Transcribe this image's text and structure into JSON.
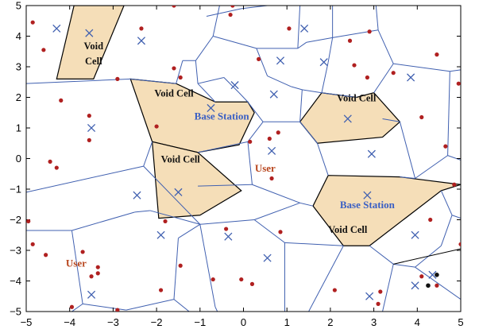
{
  "chart_data": {
    "type": "voronoi",
    "title": "",
    "xlabel": "",
    "ylabel": "",
    "xlim": [
      -5,
      5
    ],
    "ylim": [
      -5,
      5
    ],
    "x_ticks": [
      "−5",
      "−4",
      "−3",
      "−2",
      "−1",
      "0",
      "1",
      "2",
      "3",
      "4",
      "5"
    ],
    "y_ticks": [
      "5",
      "4",
      "3",
      "2",
      "1",
      "0",
      "−1",
      "−2",
      "−3",
      "−4",
      "−5"
    ],
    "grid": false,
    "colors": {
      "edge": "#4060b0",
      "void_fill": "#f5deb8",
      "void_edge": "#000000",
      "base_station": "#4060b0",
      "user": "#b02020",
      "station_label": "#3a5fc4",
      "user_label": "#b8461e"
    },
    "base_stations": [
      [
        -4.3,
        4.25
      ],
      [
        -3.55,
        4.1
      ],
      [
        -2.35,
        3.85
      ],
      [
        -3.5,
        1.0
      ],
      [
        -0.2,
        2.4
      ],
      [
        -0.75,
        1.65
      ],
      [
        0.7,
        2.1
      ],
      [
        0.85,
        3.2
      ],
      [
        1.4,
        4.25
      ],
      [
        1.85,
        3.15
      ],
      [
        2.4,
        1.3
      ],
      [
        3.85,
        2.65
      ],
      [
        2.95,
        0.15
      ],
      [
        0.65,
        0.25
      ],
      [
        -2.45,
        -1.2
      ],
      [
        -1.5,
        -1.1
      ],
      [
        -1.9,
        -2.5
      ],
      [
        -0.35,
        -2.55
      ],
      [
        0.55,
        -3.25
      ],
      [
        2.85,
        -1.2
      ],
      [
        3.95,
        -2.5
      ],
      [
        2.9,
        -4.5
      ],
      [
        3.95,
        -4.15
      ],
      [
        -3.5,
        -4.45
      ],
      [
        4.35,
        -3.8
      ]
    ],
    "users": [
      [
        -4.6,
        3.55
      ],
      [
        -4.85,
        4.45
      ],
      [
        -2.35,
        4.25
      ],
      [
        -1.6,
        5.0
      ],
      [
        -0.25,
        5.0
      ],
      [
        -0.3,
        4.7
      ],
      [
        -2.9,
        2.6
      ],
      [
        -4.2,
        1.9
      ],
      [
        -3.55,
        1.4
      ],
      [
        -1.6,
        2.95
      ],
      [
        -1.45,
        2.65
      ],
      [
        0.35,
        3.25
      ],
      [
        1.05,
        4.25
      ],
      [
        2.45,
        3.85
      ],
      [
        2.55,
        3.05
      ],
      [
        2.9,
        4.15
      ],
      [
        3.45,
        2.8
      ],
      [
        4.45,
        3.4
      ],
      [
        4.95,
        2.45
      ],
      [
        2.85,
        2.65
      ],
      [
        -4.45,
        -0.1
      ],
      [
        -4.3,
        -0.3
      ],
      [
        -3.55,
        0.6
      ],
      [
        0.15,
        0.55
      ],
      [
        0.6,
        0.65
      ],
      [
        0.65,
        -0.65
      ],
      [
        0.8,
        0.85
      ],
      [
        -2.0,
        1.05
      ],
      [
        4.1,
        1.35
      ],
      [
        4.65,
        0.4
      ],
      [
        4.85,
        -0.85
      ],
      [
        -4.95,
        -2.05
      ],
      [
        -4.85,
        -2.8
      ],
      [
        -4.55,
        -3.15
      ],
      [
        -3.7,
        -3.05
      ],
      [
        -3.35,
        -3.55
      ],
      [
        -3.5,
        -3.85
      ],
      [
        -3.35,
        -3.75
      ],
      [
        -1.9,
        -4.3
      ],
      [
        -1.8,
        -2.05
      ],
      [
        -1.45,
        -3.5
      ],
      [
        -0.7,
        -3.95
      ],
      [
        -0.05,
        -3.95
      ],
      [
        -0.4,
        -2.3
      ],
      [
        0.85,
        -2.4
      ],
      [
        0.2,
        -4.1
      ],
      [
        2.1,
        -4.3
      ],
      [
        3.1,
        -4.75
      ],
      [
        3.15,
        -4.35
      ],
      [
        4.3,
        -2.0
      ],
      [
        5.0,
        -2.8
      ],
      [
        4.1,
        -3.85
      ],
      [
        4.45,
        -4.15
      ],
      [
        -2.9,
        -4.95
      ],
      [
        -3.95,
        -4.85
      ]
    ],
    "cell_edges": [
      [
        [
          -5.0,
          2.45
        ],
        [
          -2.6,
          2.6
        ]
      ],
      [
        [
          -2.6,
          2.6
        ],
        [
          -1.55,
          2.45
        ]
      ],
      [
        [
          -1.55,
          2.45
        ],
        [
          -1.4,
          3.2
        ]
      ],
      [
        [
          -1.4,
          3.2
        ],
        [
          -1.1,
          3.2
        ]
      ],
      [
        [
          -1.1,
          3.2
        ],
        [
          -0.7,
          4.0
        ]
      ],
      [
        [
          -0.7,
          4.0
        ],
        [
          -0.55,
          5.0
        ]
      ],
      [
        [
          -0.7,
          4.0
        ],
        [
          0.3,
          3.6
        ]
      ],
      [
        [
          0.3,
          3.6
        ],
        [
          1.25,
          3.6
        ]
      ],
      [
        [
          1.25,
          3.6
        ],
        [
          1.3,
          5.0
        ]
      ],
      [
        [
          -0.85,
          4.65
        ],
        [
          -0.05,
          4.9
        ]
      ],
      [
        [
          -0.05,
          4.9
        ],
        [
          0.55,
          5.0
        ]
      ],
      [
        [
          1.25,
          3.6
        ],
        [
          1.45,
          3.8
        ]
      ],
      [
        [
          1.45,
          3.8
        ],
        [
          2.05,
          3.95
        ]
      ],
      [
        [
          2.05,
          3.95
        ],
        [
          2.05,
          5.0
        ]
      ],
      [
        [
          2.05,
          3.95
        ],
        [
          3.1,
          4.2
        ]
      ],
      [
        [
          3.1,
          4.2
        ],
        [
          3.05,
          5.0
        ]
      ],
      [
        [
          3.1,
          4.2
        ],
        [
          3.45,
          3.1
        ]
      ],
      [
        [
          3.45,
          3.1
        ],
        [
          4.75,
          2.85
        ]
      ],
      [
        [
          4.75,
          2.85
        ],
        [
          5.0,
          2.9
        ]
      ],
      [
        [
          4.75,
          2.85
        ],
        [
          4.7,
          0.1
        ]
      ],
      [
        [
          4.7,
          0.1
        ],
        [
          5.0,
          -0.05
        ]
      ],
      [
        [
          4.7,
          0.1
        ],
        [
          3.95,
          -0.65
        ]
      ],
      [
        [
          0.3,
          3.6
        ],
        [
          0.55,
          2.7
        ]
      ],
      [
        [
          -1.1,
          3.2
        ],
        [
          -1.05,
          2.45
        ]
      ],
      [
        [
          -1.05,
          2.45
        ],
        [
          -0.65,
          1.85
        ]
      ],
      [
        [
          -1.05,
          2.45
        ],
        [
          -0.45,
          2.65
        ]
      ],
      [
        [
          -0.45,
          2.65
        ],
        [
          -0.1,
          2.15
        ]
      ],
      [
        [
          -0.1,
          2.15
        ],
        [
          0.1,
          1.85
        ]
      ],
      [
        [
          0.55,
          2.7
        ],
        [
          1.1,
          2.35
        ]
      ],
      [
        [
          1.1,
          2.35
        ],
        [
          1.35,
          2.25
        ]
      ],
      [
        [
          1.35,
          2.25
        ],
        [
          1.8,
          2.15
        ]
      ],
      [
        [
          1.35,
          2.25
        ],
        [
          1.3,
          1.2
        ]
      ],
      [
        [
          1.3,
          1.2
        ],
        [
          1.7,
          0.5
        ]
      ],
      [
        [
          1.8,
          2.15
        ],
        [
          1.95,
          3.15
        ]
      ],
      [
        [
          1.95,
          3.15
        ],
        [
          2.05,
          3.95
        ]
      ],
      [
        [
          1.8,
          2.15
        ],
        [
          2.6,
          2.0
        ]
      ],
      [
        [
          3.0,
          2.15
        ],
        [
          3.45,
          3.1
        ]
      ],
      [
        [
          3.2,
          1.3
        ],
        [
          3.6,
          1.2
        ]
      ],
      [
        [
          3.6,
          1.2
        ],
        [
          3.95,
          -0.65
        ]
      ],
      [
        [
          3.95,
          -0.65
        ],
        [
          3.6,
          -0.6
        ]
      ],
      [
        [
          1.7,
          0.5
        ],
        [
          1.95,
          -0.55
        ]
      ],
      [
        [
          0.1,
          1.85
        ],
        [
          0.45,
          1.2
        ]
      ],
      [
        [
          0.45,
          1.2
        ],
        [
          1.3,
          1.2
        ]
      ],
      [
        [
          0.45,
          1.2
        ],
        [
          0.1,
          0.55
        ]
      ],
      [
        [
          0.1,
          0.55
        ],
        [
          0.2,
          -0.85
        ]
      ],
      [
        [
          -1.05,
          0.2
        ],
        [
          0.1,
          0.55
        ]
      ],
      [
        [
          -5.0,
          -1.1
        ],
        [
          -2.3,
          -0.25
        ]
      ],
      [
        [
          -2.3,
          -0.25
        ],
        [
          -2.1,
          0.55
        ]
      ],
      [
        [
          -2.3,
          -0.25
        ],
        [
          -1.0,
          -2.15
        ]
      ],
      [
        [
          -1.05,
          -0.9
        ],
        [
          0.2,
          -0.85
        ]
      ],
      [
        [
          0.2,
          -0.85
        ],
        [
          1.3,
          -1.45
        ]
      ],
      [
        [
          1.3,
          -1.45
        ],
        [
          1.6,
          -1.55
        ]
      ],
      [
        [
          -5.0,
          -2.35
        ],
        [
          -3.95,
          -2.35
        ]
      ],
      [
        [
          -3.95,
          -2.35
        ],
        [
          -2.5,
          -1.75
        ]
      ],
      [
        [
          -2.5,
          -1.75
        ],
        [
          -2.15,
          -1.7
        ]
      ],
      [
        [
          -2.15,
          -1.7
        ],
        [
          -1.0,
          -2.15
        ]
      ],
      [
        [
          -1.0,
          -2.15
        ],
        [
          0.25,
          -2.0
        ]
      ],
      [
        [
          0.25,
          -2.0
        ],
        [
          1.3,
          -1.45
        ]
      ],
      [
        [
          0.25,
          -2.0
        ],
        [
          0.95,
          -2.75
        ]
      ],
      [
        [
          0.95,
          -2.75
        ],
        [
          0.95,
          -5.0
        ]
      ],
      [
        [
          -3.95,
          -2.35
        ],
        [
          -3.7,
          -4.75
        ]
      ],
      [
        [
          -3.7,
          -4.75
        ],
        [
          -3.95,
          -5.0
        ]
      ],
      [
        [
          -1.0,
          -2.15
        ],
        [
          -0.65,
          -4.85
        ]
      ],
      [
        [
          -0.65,
          -4.85
        ],
        [
          -0.6,
          -5.0
        ]
      ],
      [
        [
          -3.7,
          -4.75
        ],
        [
          -2.7,
          -4.95
        ]
      ],
      [
        [
          -2.7,
          -4.95
        ],
        [
          -1.6,
          -4.6
        ]
      ],
      [
        [
          -1.6,
          -4.6
        ],
        [
          -1.25,
          -5.0
        ]
      ],
      [
        [
          -1.6,
          -4.6
        ],
        [
          -1.5,
          -2.6
        ]
      ],
      [
        [
          -1.5,
          -2.6
        ],
        [
          -1.0,
          -2.15
        ]
      ],
      [
        [
          0.95,
          -2.75
        ],
        [
          2.3,
          -2.85
        ]
      ],
      [
        [
          2.3,
          -2.85
        ],
        [
          1.5,
          -5.0
        ]
      ],
      [
        [
          2.9,
          -2.85
        ],
        [
          3.45,
          -3.45
        ]
      ],
      [
        [
          3.45,
          -3.45
        ],
        [
          3.2,
          -5.0
        ]
      ],
      [
        [
          3.45,
          -3.45
        ],
        [
          3.95,
          -3.55
        ]
      ],
      [
        [
          3.95,
          -3.55
        ],
        [
          5.0,
          -4.6
        ]
      ],
      [
        [
          3.95,
          -3.55
        ],
        [
          4.55,
          -2.85
        ]
      ],
      [
        [
          4.55,
          -2.85
        ],
        [
          4.8,
          -1.85
        ]
      ],
      [
        [
          4.8,
          -1.85
        ],
        [
          4.55,
          -1.05
        ]
      ],
      [
        [
          4.8,
          -1.85
        ],
        [
          5.0,
          -1.95
        ]
      ]
    ],
    "highlight_edges": [
      [
        [
          3.45,
          -3.45
        ],
        [
          5.0,
          -2.95
        ]
      ]
    ],
    "void_cells": [
      [
        [
          -4.3,
          2.6
        ],
        [
          -3.45,
          2.6
        ],
        [
          -2.75,
          5.0
        ],
        [
          -3.9,
          5.0
        ]
      ],
      [
        [
          -2.6,
          2.6
        ],
        [
          -1.55,
          2.45
        ],
        [
          -0.65,
          1.85
        ],
        [
          0.1,
          1.85
        ],
        [
          0.25,
          1.5
        ],
        [
          -0.1,
          0.45
        ],
        [
          -1.05,
          0.2
        ],
        [
          -2.1,
          0.55
        ]
      ],
      [
        [
          -2.1,
          0.55
        ],
        [
          -1.05,
          0.2
        ],
        [
          -0.05,
          -1.05
        ],
        [
          -1.0,
          -1.85
        ],
        [
          -1.95,
          -1.95
        ]
      ],
      [
        [
          1.3,
          1.2
        ],
        [
          1.8,
          2.15
        ],
        [
          2.6,
          2.0
        ],
        [
          3.0,
          2.15
        ],
        [
          3.6,
          1.2
        ],
        [
          3.2,
          0.7
        ],
        [
          1.7,
          0.5
        ]
      ],
      [
        [
          1.6,
          -1.55
        ],
        [
          1.95,
          -0.55
        ],
        [
          3.6,
          -0.6
        ],
        [
          5.0,
          -0.85
        ],
        [
          4.55,
          -1.05
        ],
        [
          2.9,
          -2.85
        ],
        [
          2.3,
          -2.85
        ]
      ]
    ],
    "annotations": [
      {
        "text": "Void",
        "x": -3.45,
        "y": 3.65,
        "kind": "void"
      },
      {
        "text": "Cell",
        "x": -3.45,
        "y": 3.15,
        "kind": "void"
      },
      {
        "text": "Void Cell",
        "x": -1.6,
        "y": 2.1,
        "kind": "void"
      },
      {
        "text": "Void Cell",
        "x": -1.45,
        "y": -0.05,
        "kind": "void"
      },
      {
        "text": "Void Cell",
        "x": 2.6,
        "y": 1.95,
        "kind": "void"
      },
      {
        "text": "Void Cell",
        "x": 2.4,
        "y": -2.35,
        "kind": "void"
      },
      {
        "text": "Base Station",
        "x": -0.5,
        "y": 1.35,
        "kind": "station"
      },
      {
        "text": "Base Station",
        "x": 2.85,
        "y": -1.55,
        "kind": "station"
      },
      {
        "text": "User",
        "x": 0.5,
        "y": -0.35,
        "kind": "user"
      },
      {
        "text": "User",
        "x": -3.85,
        "y": -3.45,
        "kind": "user"
      }
    ],
    "special_points": [
      {
        "shape": "dot",
        "x": 4.25,
        "y": -4.15,
        "color": "#111111"
      },
      {
        "shape": "dot",
        "x": 4.45,
        "y": -3.8,
        "color": "#111111"
      }
    ]
  }
}
